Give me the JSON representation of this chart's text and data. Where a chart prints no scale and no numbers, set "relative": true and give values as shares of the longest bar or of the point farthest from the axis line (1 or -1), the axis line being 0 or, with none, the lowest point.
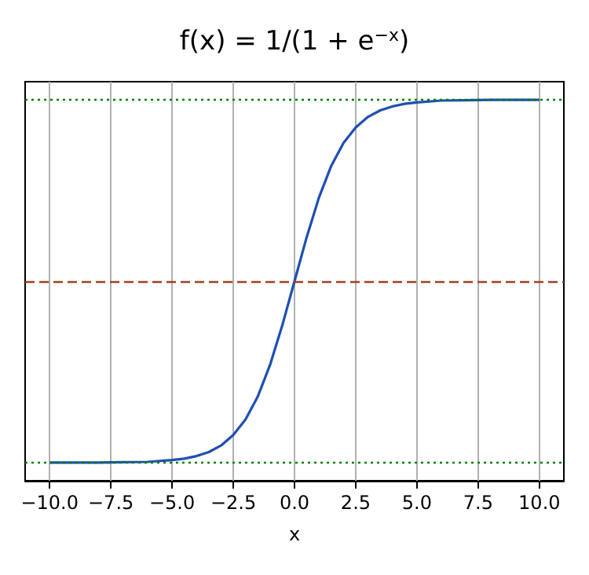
{
  "chart_data": {
    "type": "line",
    "title": "f(x) = 1/(1 + e$^{−x}$)",
    "xlabel": "x",
    "relative": true,
    "x": [
      -10,
      -9,
      -8,
      -7,
      -6,
      -5,
      -4.5,
      -4,
      -3.5,
      -3,
      -2.5,
      -2,
      -1.5,
      -1,
      -0.5,
      0,
      0.5,
      1,
      1.5,
      2,
      2.5,
      3,
      3.5,
      4,
      4.5,
      5,
      6,
      7,
      8,
      9,
      10
    ],
    "series": [
      {
        "color": "#1f4fb4",
        "values": [
          0.0,
          0.0,
          0.0,
          0.001,
          0.002,
          0.007,
          0.011,
          0.018,
          0.029,
          0.047,
          0.076,
          0.119,
          0.182,
          0.269,
          0.378,
          0.5,
          0.622,
          0.731,
          0.818,
          0.881,
          0.924,
          0.953,
          0.971,
          0.982,
          0.989,
          0.993,
          0.998,
          0.999,
          1.0,
          1.0,
          1.0
        ]
      }
    ],
    "xlim": [
      -11,
      11
    ],
    "xticks": [
      {
        "value": -10,
        "label": "−10.0"
      },
      {
        "value": -7.5,
        "label": "−7.5"
      },
      {
        "value": -5,
        "label": "−5.0"
      },
      {
        "value": -2.5,
        "label": "−2.5"
      },
      {
        "value": 0,
        "label": "0.0"
      },
      {
        "value": 2.5,
        "label": "2.5"
      },
      {
        "value": 5,
        "label": "5.0"
      },
      {
        "value": 7.5,
        "label": "7.5"
      },
      {
        "value": 10,
        "label": "10.0"
      }
    ],
    "ref_lines": [
      {
        "axis": "y",
        "value": 0,
        "color": "#008000",
        "line_style": "dotted"
      },
      {
        "axis": "y",
        "value": 0.5,
        "color": "#a0401a",
        "line_style": "dashed"
      },
      {
        "axis": "y",
        "value": 1,
        "color": "#008000",
        "line_style": "dotted"
      }
    ],
    "grid": "x",
    "marker": "none",
    "line_style": "solid"
  }
}
